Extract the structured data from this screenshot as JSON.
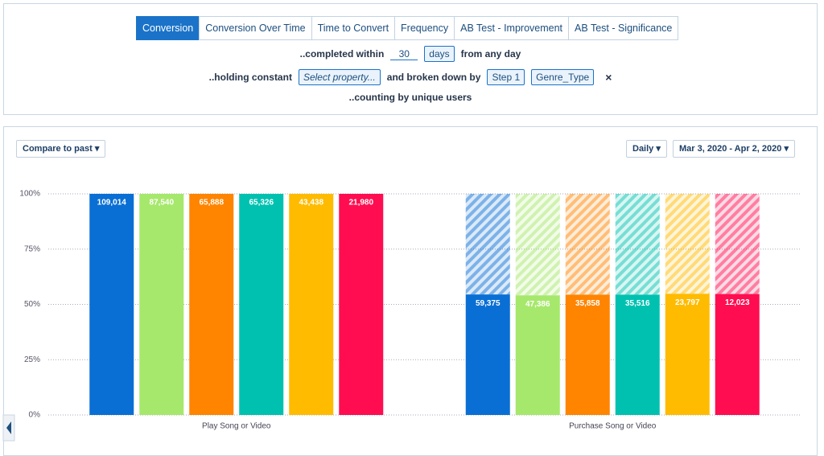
{
  "ui": {
    "tabs": [
      "Conversion",
      "Conversion Over Time",
      "Time to Convert",
      "Frequency",
      "AB Test - Improvement",
      "AB Test - Significance"
    ],
    "completed_label": "..completed within",
    "window_value": "30",
    "window_unit": "days",
    "from_label": "from any day",
    "holding_label": "..holding constant",
    "property_placeholder": "Select property...",
    "broken_label": "and broken down by",
    "step_chip": "Step 1",
    "group_chip": "Genre_Type",
    "remove": "×",
    "counting_label": "..counting by unique users",
    "compare_button": "Compare to past ▾",
    "interval_button": "Daily ▾",
    "date_button": "Mar 3, 2020 - Apr 2, 2020 ▾"
  },
  "chart_data": {
    "type": "bar",
    "categories": [
      "Play Song or Video",
      "Purchase Song or Video"
    ],
    "series": [
      {
        "color": "#0a6fd4",
        "values": [
          100,
          54.5
        ],
        "counts": [
          "109,014",
          "59,375"
        ]
      },
      {
        "color": "#a6e86c",
        "values": [
          100,
          54.1
        ],
        "counts": [
          "87,540",
          "47,386"
        ]
      },
      {
        "color": "#ff8400",
        "values": [
          100,
          54.4
        ],
        "counts": [
          "65,888",
          "35,858"
        ]
      },
      {
        "color": "#00c1b0",
        "values": [
          100,
          54.4
        ],
        "counts": [
          "65,326",
          "35,516"
        ]
      },
      {
        "color": "#ffbb00",
        "values": [
          100,
          54.8
        ],
        "counts": [
          "43,438",
          "23,797"
        ]
      },
      {
        "color": "#ff0d50",
        "values": [
          100,
          54.7
        ],
        "counts": [
          "21,980",
          "12,023"
        ]
      }
    ],
    "ylim": [
      0,
      100
    ],
    "yticks": [
      {
        "value": 0,
        "label": "0%"
      },
      {
        "value": 25,
        "label": "25%"
      },
      {
        "value": 50,
        "label": "50%"
      },
      {
        "value": 75,
        "label": "75%"
      },
      {
        "value": 100,
        "label": "100%"
      }
    ],
    "grid": true
  }
}
